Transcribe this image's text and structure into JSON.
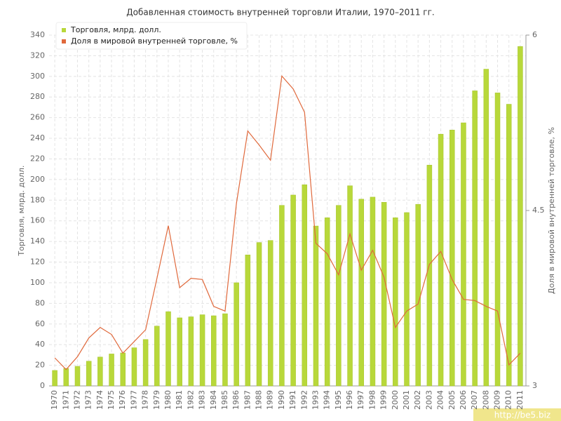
{
  "chart_data": {
    "type": "bar-line",
    "title": "Добавленная стоимость внутренней торговли Италии, 1970–2011 гг.",
    "y_label": "Торговля, млрд. долл.",
    "y2_label": "Доля в мировой внутренней торговле, %",
    "categories": [
      "1970",
      "1971",
      "1972",
      "1973",
      "1974",
      "1975",
      "1976",
      "1977",
      "1978",
      "1979",
      "1980",
      "1981",
      "1982",
      "1983",
      "1984",
      "1985",
      "1986",
      "1987",
      "1988",
      "1989",
      "1990",
      "1991",
      "1992",
      "1993",
      "1994",
      "1995",
      "1996",
      "1997",
      "1998",
      "1999",
      "2000",
      "2001",
      "2002",
      "2003",
      "2004",
      "2005",
      "2006",
      "2007",
      "2008",
      "2009",
      "2010",
      "2011"
    ],
    "series": [
      {
        "name": "Торговля, млрд. долл.",
        "color": "#b8d83a",
        "kind": "bar",
        "values": [
          15,
          17,
          19,
          24,
          28,
          31,
          32,
          37,
          45,
          58,
          72,
          66,
          67,
          69,
          68,
          70,
          100,
          127,
          139,
          141,
          175,
          185,
          195,
          155,
          163,
          175,
          194,
          181,
          183,
          178,
          163,
          168,
          176,
          214,
          244,
          248,
          255,
          286,
          307,
          284,
          273,
          329
        ]
      },
      {
        "name": "Доля в мировой внутренней торговле, %",
        "color": "#e0693c",
        "kind": "line",
        "axis": "y2",
        "values": [
          3.24,
          3.14,
          3.25,
          3.41,
          3.5,
          3.44,
          3.28,
          3.38,
          3.48,
          3.92,
          4.37,
          3.84,
          3.92,
          3.91,
          3.68,
          3.64,
          4.56,
          5.18,
          5.06,
          4.93,
          5.65,
          5.54,
          5.34,
          4.22,
          4.13,
          3.95,
          4.3,
          3.99,
          4.16,
          3.93,
          3.5,
          3.64,
          3.7,
          4.04,
          4.15,
          3.91,
          3.74,
          3.73,
          3.68,
          3.64,
          3.18,
          3.28
        ]
      }
    ],
    "ylim": [
      0,
      340
    ],
    "yticks": [
      0,
      20,
      40,
      60,
      80,
      100,
      120,
      140,
      160,
      180,
      200,
      220,
      240,
      260,
      280,
      300,
      320,
      340
    ],
    "y2lim": [
      3,
      6
    ],
    "y2ticks": [
      3,
      4.5,
      6
    ],
    "grid": true,
    "legend": "top-left",
    "watermark": "http://be5.biz"
  }
}
